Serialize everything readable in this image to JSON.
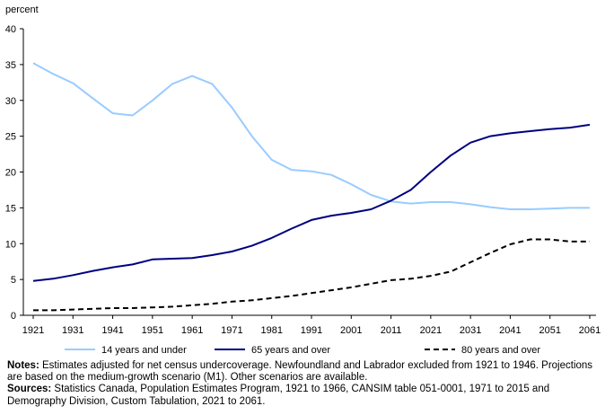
{
  "chart_data": {
    "type": "line",
    "title": "",
    "ylabel": "percent",
    "xlabel": "",
    "xlim": [
      1921,
      2061
    ],
    "ylim": [
      0,
      40
    ],
    "x_ticks": [
      1921,
      1931,
      1941,
      1951,
      1961,
      1971,
      1981,
      1991,
      2001,
      2011,
      2021,
      2031,
      2041,
      2051,
      2061
    ],
    "y_ticks": [
      0,
      5,
      10,
      15,
      20,
      25,
      30,
      35,
      40
    ],
    "grid": false,
    "legend": "bottom",
    "series": [
      {
        "name": "14 years and under",
        "color": "#99ccff",
        "dash": "solid",
        "x": [
          1921,
          1926,
          1931,
          1936,
          1941,
          1946,
          1951,
          1956,
          1961,
          1966,
          1971,
          1976,
          1981,
          1986,
          1991,
          1996,
          2001,
          2006,
          2011,
          2016,
          2021,
          2026,
          2031,
          2036,
          2041,
          2046,
          2051,
          2056,
          2061
        ],
        "values": [
          35.2,
          33.7,
          32.4,
          30.3,
          28.2,
          27.9,
          30.0,
          32.3,
          33.4,
          32.3,
          29.0,
          25.0,
          21.7,
          20.3,
          20.1,
          19.6,
          18.3,
          16.8,
          15.9,
          15.6,
          15.8,
          15.8,
          15.5,
          15.1,
          14.8,
          14.8,
          14.9,
          15.0,
          15.0
        ]
      },
      {
        "name": "65 years and over",
        "color": "#000080",
        "dash": "solid",
        "x": [
          1921,
          1926,
          1931,
          1936,
          1941,
          1946,
          1951,
          1956,
          1961,
          1966,
          1971,
          1976,
          1981,
          1986,
          1991,
          1996,
          2001,
          2006,
          2011,
          2016,
          2021,
          2026,
          2031,
          2036,
          2041,
          2046,
          2051,
          2056,
          2061
        ],
        "values": [
          4.8,
          5.1,
          5.6,
          6.2,
          6.7,
          7.1,
          7.8,
          7.9,
          8.0,
          8.4,
          8.9,
          9.7,
          10.8,
          12.1,
          13.3,
          13.9,
          14.3,
          14.8,
          16.0,
          17.5,
          20.0,
          22.3,
          24.1,
          25.0,
          25.4,
          25.7,
          26.0,
          26.2,
          26.6
        ]
      },
      {
        "name": "80 years and over",
        "color": "#000000",
        "dash": "dashed",
        "x": [
          1921,
          1926,
          1931,
          1936,
          1941,
          1946,
          1951,
          1956,
          1961,
          1966,
          1971,
          1976,
          1981,
          1986,
          1991,
          1996,
          2001,
          2006,
          2011,
          2016,
          2021,
          2026,
          2031,
          2036,
          2041,
          2046,
          2051,
          2056,
          2061
        ],
        "values": [
          0.7,
          0.7,
          0.8,
          0.9,
          1.0,
          1.0,
          1.1,
          1.2,
          1.4,
          1.6,
          1.9,
          2.1,
          2.4,
          2.7,
          3.1,
          3.5,
          3.9,
          4.4,
          4.9,
          5.1,
          5.5,
          6.1,
          7.4,
          8.7,
          9.9,
          10.6,
          10.6,
          10.3,
          10.3
        ]
      }
    ]
  },
  "notes": {
    "notes_label": "Notes:",
    "notes_text": " Estimates adjusted for net census undercoverage. Newfoundland and Labrador excluded from 1921 to 1946. Projections are based on the medium-growth scenario (M1). Other scenarios are available.",
    "sources_label": "Sources:",
    "sources_text": " Statistics Canada, Population Estimates Program, 1921 to 1966, CANSIM table 051-0001, 1971 to 2015 and Demography Division, Custom Tabulation, 2021 to 2061."
  }
}
